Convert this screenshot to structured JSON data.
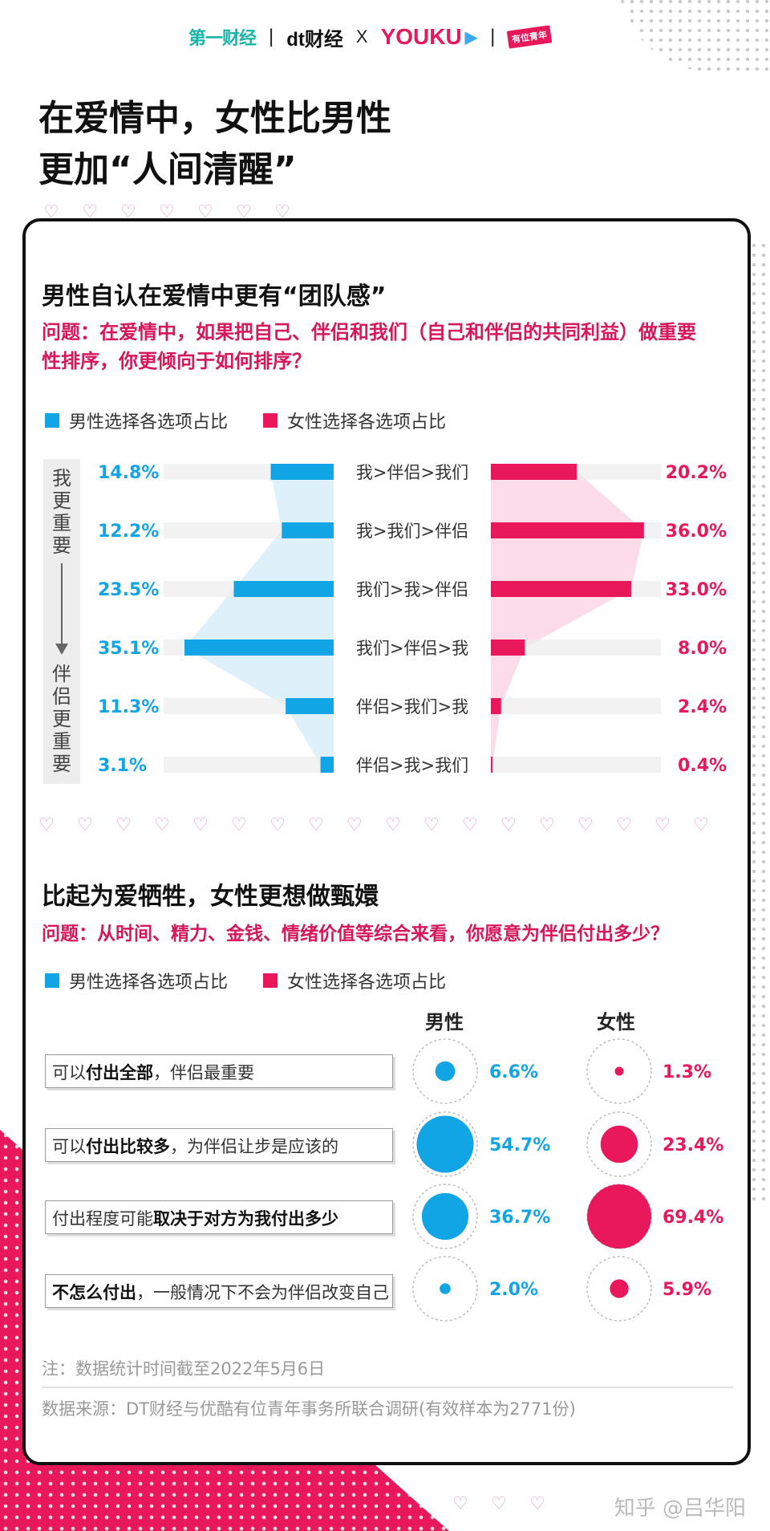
{
  "header": {
    "logos": {
      "yicai": "第一财经",
      "separator": "|",
      "dt": "dt财经",
      "x": "X",
      "youku": "YOUKU",
      "badge": "有位青年"
    },
    "title_line1": "在爱情中，女性比男性",
    "title_line2": "更加“人间清醒”"
  },
  "section1": {
    "title": "男性自认在爱情中更有“团队感”",
    "question": "问题：在爱情中，如果把自己、伴侣和我们（自己和伴侣的共同利益）做重要性排序，你更倾向于如何排序？",
    "legend_male": "男性选择各选项占比",
    "legend_female": "女性选择各选项占比",
    "axis_top": "我更重要",
    "axis_bottom": "伴侣更重要"
  },
  "section2": {
    "title": "比起为爱牺牲，女性更想做甄嬛",
    "question": "问题：从时间、精力、金钱、情绪价值等综合来看，你愿意为伴侣付出多少？",
    "legend_male": "男性选择各选项占比",
    "legend_female": "女性选择各选项占比",
    "col_male": "男性",
    "col_female": "女性",
    "options": [
      {
        "bold_before": "",
        "normal_before": "可以",
        "bold": "付出全部",
        "normal_after": "，伴侣最重要"
      },
      {
        "bold_before": "",
        "normal_before": "可以",
        "bold": "付出比较多",
        "normal_after": "，为伴侣让步是应该的"
      },
      {
        "bold_before": "",
        "normal_before": "付出程度可能",
        "bold": "取决于对方为我付出多少",
        "normal_after": ""
      },
      {
        "bold_before": "不怎么付出",
        "normal_before": "",
        "bold": "",
        "normal_after": "，一般情况下不会为伴侣改变自己"
      }
    ]
  },
  "notes": {
    "note1": "注：数据统计时间截至2022年5月6日",
    "note2": "数据来源：DT财经与优酷有位青年事务所联合调研(有效样本为2771份)"
  },
  "watermark": "知乎 @吕华阳",
  "colors": {
    "male": "#12a5e6",
    "female": "#e8185a",
    "male_fill": "#d6ecf8",
    "female_fill": "#fbd3e3",
    "track": "#ededed"
  },
  "chart_data": [
    {
      "type": "bar",
      "orientation": "diverging-horizontal",
      "categories": [
        "我>伴侣>我们",
        "我>我们>伴侣",
        "我们>我>伴侣",
        "我们>伴侣>我",
        "伴侣>我们>我",
        "伴侣>我>我们"
      ],
      "series": [
        {
          "name": "男性选择各选项占比",
          "values": [
            14.8,
            12.2,
            23.5,
            35.1,
            11.3,
            3.1
          ],
          "labels": [
            "14.8%",
            "12.2%",
            "23.5%",
            "35.1%",
            "11.3%",
            "3.1%"
          ]
        },
        {
          "name": "女性选择各选项占比",
          "values": [
            20.2,
            36.0,
            33.0,
            8.0,
            2.4,
            0.4
          ],
          "labels": [
            "20.2%",
            "36.0%",
            "33.0%",
            "8.0%",
            "2.4%",
            "0.4%"
          ]
        }
      ],
      "xlim": [
        0,
        40
      ]
    },
    {
      "type": "scatter",
      "encoding": "bubble-size",
      "categories": [
        "付出全部",
        "付出比较多",
        "取决于对方为我付出多少",
        "不怎么付出"
      ],
      "series": [
        {
          "name": "男性",
          "values": [
            6.6,
            54.7,
            36.7,
            2.0
          ],
          "labels": [
            "6.6%",
            "54.7%",
            "36.7%",
            "2.0%"
          ]
        },
        {
          "name": "女性",
          "values": [
            1.3,
            23.4,
            69.4,
            5.9
          ],
          "labels": [
            "1.3%",
            "23.4%",
            "69.4%",
            "5.9%"
          ]
        }
      ]
    }
  ]
}
